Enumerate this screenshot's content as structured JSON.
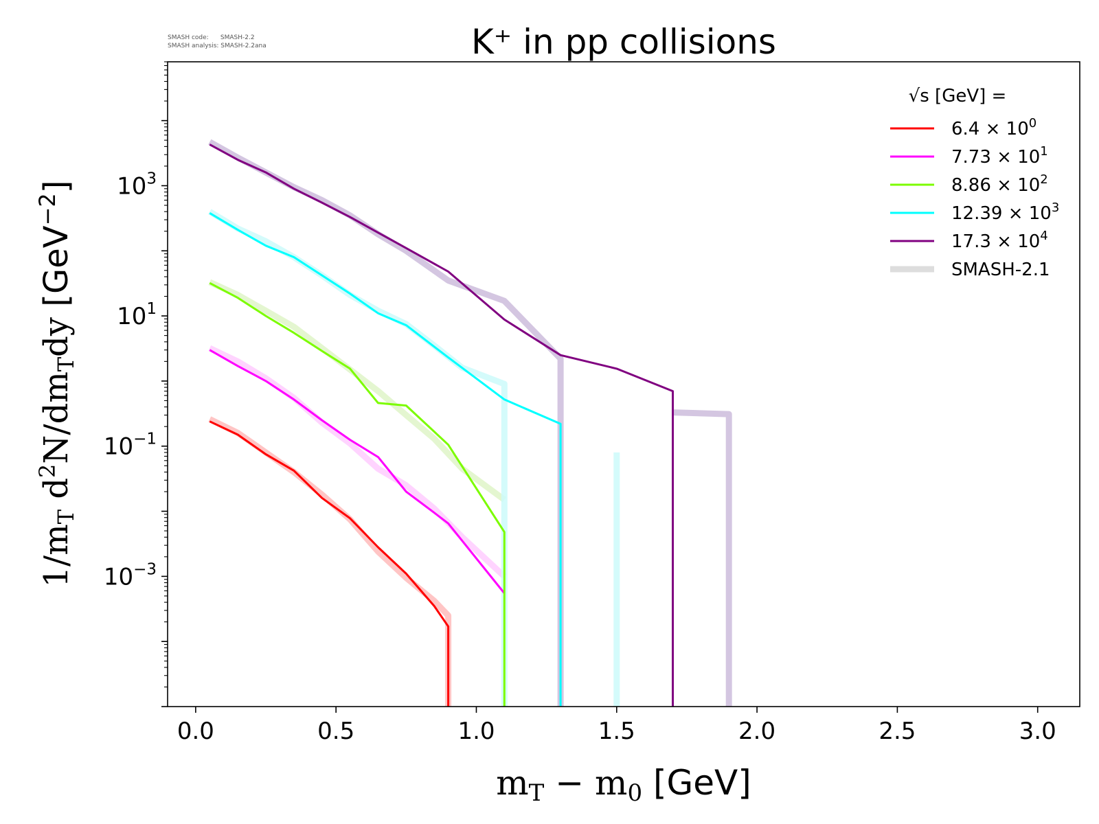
{
  "meta": {
    "code_line": "SMASH code:      SMASH-2.2",
    "analysis_line": "SMASH analysis: SMASH-2.2ana"
  },
  "chart_data": {
    "type": "line",
    "title": "K⁺ in pp collisions",
    "xlabel": "m_T − m_0 [GeV]",
    "ylabel": "1/m_T d²N/dm_T dy [GeV⁻²]",
    "xscale": "linear",
    "yscale": "log",
    "xlim": [
      -0.1,
      3.15
    ],
    "ylim": [
      1e-05,
      80000
    ],
    "xticks": [
      0.0,
      0.5,
      1.0,
      1.5,
      2.0,
      2.5,
      3.0
    ],
    "xtick_labels": [
      "0.0",
      "0.5",
      "1.0",
      "1.5",
      "2.0",
      "2.5",
      "3.0"
    ],
    "yticks": [
      0.001,
      0.1,
      10,
      1000
    ],
    "ytick_labels": [
      {
        "base": "10",
        "exp": "−3"
      },
      {
        "base": "10",
        "exp": "−1"
      },
      {
        "base": "10",
        "exp": "1"
      },
      {
        "base": "10",
        "exp": "3"
      }
    ],
    "grid": false,
    "legend": {
      "placement": "top-right",
      "title": "√s  [GeV] =",
      "entries": [
        {
          "mant": "6.4",
          "exp": "0",
          "color": "#ff0000"
        },
        {
          "mant": "7.73",
          "exp": "1",
          "color": "#ff00ff"
        },
        {
          "mant": "8.86",
          "exp": "2",
          "color": "#7cfc00"
        },
        {
          "mant": "12.39",
          "exp": "3",
          "color": "#00ffff"
        },
        {
          "mant": "17.3",
          "exp": "4",
          "color": "#800080"
        },
        {
          "label": "SMASH-2.1",
          "color": "#dddddd"
        }
      ]
    },
    "series": [
      {
        "color": "#ff0000",
        "x": [
          0.05,
          0.15,
          0.25,
          0.35,
          0.45,
          0.55,
          0.65,
          0.75,
          0.85,
          0.9,
          0.9
        ],
        "y": [
          0.24,
          0.15,
          0.075,
          0.042,
          0.016,
          0.0078,
          0.0028,
          0.0011,
          0.00035,
          0.00017,
          1e-06
        ]
      },
      {
        "color": "#ff00ff",
        "x": [
          0.05,
          0.15,
          0.25,
          0.35,
          0.45,
          0.55,
          0.65,
          0.75,
          0.85,
          0.9,
          1.1
        ],
        "y": [
          3.0,
          1.7,
          1.0,
          0.52,
          0.25,
          0.125,
          0.068,
          0.02,
          0.0095,
          0.0065,
          0.00055
        ]
      },
      {
        "color": "#7cfc00",
        "x": [
          0.05,
          0.15,
          0.25,
          0.35,
          0.45,
          0.55,
          0.65,
          0.75,
          0.9,
          1.1,
          1.1
        ],
        "y": [
          32,
          19,
          10,
          5.5,
          2.9,
          1.55,
          0.46,
          0.42,
          0.105,
          0.0048,
          1e-06
        ]
      },
      {
        "color": "#00ffff",
        "x": [
          0.05,
          0.15,
          0.25,
          0.35,
          0.45,
          0.55,
          0.65,
          0.75,
          0.9,
          1.1,
          1.3,
          1.3
        ],
        "y": [
          380,
          210,
          120,
          80,
          42,
          22,
          11,
          7.2,
          2.3,
          0.52,
          0.22,
          1e-06
        ]
      },
      {
        "color": "#800080",
        "x": [
          0.05,
          0.15,
          0.25,
          0.35,
          0.45,
          0.55,
          0.65,
          0.75,
          0.9,
          1.1,
          1.3,
          1.5,
          1.7,
          1.7
        ],
        "y": [
          4300,
          2500,
          1600,
          900,
          550,
          330,
          190,
          110,
          48,
          8.8,
          2.5,
          1.55,
          0.7,
          1e-06
        ]
      }
    ],
    "reference_series": [
      {
        "name": "SMASH-2.1",
        "color": "#ffbbbb",
        "x": [
          0.05,
          0.15,
          0.25,
          0.35,
          0.45,
          0.55,
          0.65,
          0.75,
          0.85,
          0.9,
          0.9
        ],
        "y": [
          0.26,
          0.16,
          0.08,
          0.04,
          0.018,
          0.0075,
          0.0024,
          0.00095,
          0.00042,
          0.00025,
          1e-06
        ]
      },
      {
        "name": "SMASH-2.1",
        "color": "#ffcdff",
        "x": [
          0.05,
          0.15,
          0.25,
          0.35,
          0.45,
          0.55,
          0.65,
          0.75,
          0.85,
          0.95,
          1.1
        ],
        "y": [
          3.2,
          2.0,
          1.1,
          0.55,
          0.23,
          0.11,
          0.045,
          0.025,
          0.011,
          0.004,
          0.001
        ]
      },
      {
        "name": "SMASH-2.1",
        "color": "#dff5c8",
        "x": [
          0.05,
          0.15,
          0.25,
          0.35,
          0.45,
          0.55,
          0.65,
          0.75,
          0.85,
          0.95,
          1.1
        ],
        "y": [
          33,
          21,
          12,
          6.8,
          3.2,
          1.5,
          0.7,
          0.3,
          0.13,
          0.045,
          0.015
        ]
      },
      {
        "name": "SMASH-2.1",
        "color": "#ccfafa",
        "x": [
          0.05,
          0.15,
          0.25,
          0.35,
          0.45,
          0.55,
          0.65,
          0.75,
          0.85,
          0.95,
          1.1,
          1.1
        ],
        "y": [
          400,
          220,
          140,
          80,
          42,
          21,
          12,
          7.5,
          3.5,
          1.6,
          0.9,
          1e-06
        ]
      },
      {
        "name": "SMASH-2.1",
        "color": "#ccfafa",
        "x": [
          1.5,
          1.5
        ],
        "y": [
          0.08,
          1e-06
        ]
      },
      {
        "name": "SMASH-2.1",
        "color": "#cdbcdc",
        "x": [
          0.05,
          0.15,
          0.25,
          0.35,
          0.45,
          0.55,
          0.65,
          0.75,
          0.9,
          1.1,
          1.3,
          1.3
        ],
        "y": [
          4700,
          2700,
          1600,
          950,
          600,
          350,
          180,
          100,
          35,
          17,
          2.2,
          1e-06
        ]
      },
      {
        "name": "SMASH-2.1",
        "color": "#cdbcdc",
        "x": [
          1.7,
          1.9,
          1.9
        ],
        "y": [
          0.33,
          0.31,
          1e-06
        ]
      }
    ]
  }
}
